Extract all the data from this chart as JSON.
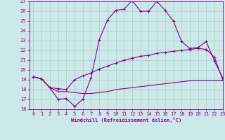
{
  "xlabel": "Windchill (Refroidissement éolien,°C)",
  "background_color": "#cce8e8",
  "grid_color": "#aacccc",
  "line_color": "#880088",
  "xlim": [
    -0.5,
    23
  ],
  "ylim": [
    16,
    27
  ],
  "yticks": [
    16,
    17,
    18,
    19,
    20,
    21,
    22,
    23,
    24,
    25,
    26,
    27
  ],
  "xticks": [
    0,
    1,
    2,
    3,
    4,
    5,
    6,
    7,
    8,
    9,
    10,
    11,
    12,
    13,
    14,
    15,
    16,
    17,
    18,
    19,
    20,
    21,
    22,
    23
  ],
  "line1_x": [
    0,
    1,
    2,
    3,
    4,
    5,
    6,
    7,
    8,
    9,
    10,
    11,
    12,
    13,
    14,
    15,
    16,
    17,
    18,
    19,
    20,
    21,
    22,
    23
  ],
  "line1_y": [
    19.3,
    19.1,
    18.2,
    17.0,
    17.1,
    16.3,
    17.0,
    19.2,
    23.1,
    25.1,
    26.1,
    26.2,
    27.1,
    26.0,
    26.0,
    27.0,
    26.1,
    25.0,
    22.9,
    22.2,
    22.3,
    22.9,
    20.9,
    19.2
  ],
  "line2_x": [
    0,
    1,
    2,
    3,
    4,
    5,
    6,
    7,
    8,
    9,
    10,
    11,
    12,
    13,
    14,
    15,
    16,
    17,
    18,
    19,
    20,
    21,
    22,
    23
  ],
  "line2_y": [
    19.3,
    19.1,
    18.2,
    18.1,
    18.0,
    19.0,
    19.4,
    19.7,
    20.1,
    20.4,
    20.7,
    21.0,
    21.2,
    21.4,
    21.5,
    21.7,
    21.8,
    21.9,
    22.0,
    22.1,
    22.2,
    22.1,
    21.3,
    19.0
  ],
  "line3_x": [
    0,
    1,
    2,
    3,
    4,
    5,
    6,
    7,
    8,
    9,
    10,
    11,
    12,
    13,
    14,
    15,
    16,
    17,
    18,
    19,
    20,
    21,
    22,
    23
  ],
  "line3_y": [
    19.3,
    19.1,
    18.2,
    17.8,
    17.8,
    17.7,
    17.6,
    17.6,
    17.7,
    17.8,
    18.0,
    18.1,
    18.2,
    18.3,
    18.4,
    18.5,
    18.6,
    18.7,
    18.8,
    18.9,
    18.9,
    18.9,
    18.9,
    18.9
  ]
}
